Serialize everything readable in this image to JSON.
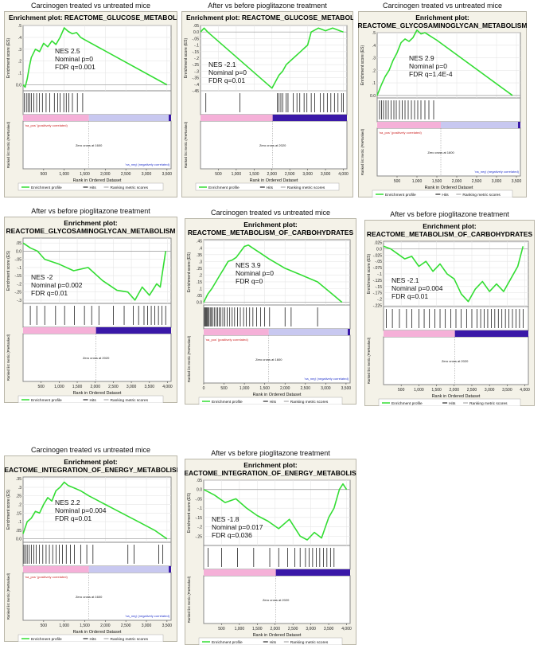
{
  "colors": {
    "curve": "#33dd33",
    "frame_bg": "#f4f2e8",
    "plot_bg": "#ffffff",
    "pos_bar": "#f5b0d8",
    "neg_bar_light": "#c8c8f0",
    "neg_bar_dark": "#3a18a8",
    "pos_label": "#cc2222",
    "neg_label": "#2233cc"
  },
  "labels": {
    "ylabel_es": "Enrichment score (ES)",
    "ylabel_rank": "Ranked list metric (PreRanked)",
    "xlabel": "Rank in Ordered Dataset",
    "pos_label": "'na_pos' (positively correlated)",
    "neg_label": "'na_neg' (negatively correlated)",
    "legend_profile": "Enrichment profile",
    "legend_hits": "Hits",
    "legend_metric": "Ranking metric scores"
  },
  "chart_data": [
    {
      "type": "line",
      "caption": "Carcinogen treated vs untreated mice",
      "title": [
        "Enrichment plot: REACTOME_GLUCOSE_METABOLISM"
      ],
      "nes": "NES 2.5",
      "pval": "Nominal p=0",
      "fdr": "FDR q=0.001",
      "xmax": 3600,
      "xticks": [
        500,
        1000,
        1500,
        2000,
        2500,
        3000,
        3500
      ],
      "xticklabels": [
        "500",
        "1,000",
        "1,500",
        "2,000",
        "2,500",
        "3,000",
        "3,500"
      ],
      "ylim": [
        -0.05,
        0.5
      ],
      "yticks": [
        0.0,
        0.1,
        0.2,
        0.3,
        0.4,
        0.5
      ],
      "x": [
        0,
        50,
        100,
        150,
        200,
        300,
        400,
        500,
        600,
        700,
        800,
        900,
        1000,
        1100,
        1200,
        1300,
        1400,
        1500,
        3500
      ],
      "y": [
        0,
        -0.02,
        0.05,
        0.15,
        0.23,
        0.3,
        0.28,
        0.35,
        0.32,
        0.37,
        0.34,
        0.4,
        0.48,
        0.45,
        0.43,
        0.44,
        0.4,
        0.38,
        0.0
      ],
      "hits": [
        30,
        80,
        120,
        160,
        200,
        260,
        330,
        400,
        470,
        560,
        650,
        760,
        840,
        900,
        990,
        1050,
        1110,
        1200,
        1320,
        1450
      ],
      "zero_cross": "Zero cross at 1600",
      "zero_x": 1600,
      "dark_neg": false,
      "show_pos_label": true
    },
    {
      "type": "line",
      "caption": "After vs before pioglitazone treatment",
      "title": [
        "Enrichment plot: REACTOME_GLUCOSE_METABOLISM"
      ],
      "nes": "NES -2.1",
      "pval": "Nominal p=0",
      "fdr": "FDR q=0.01",
      "xmax": 4100,
      "xticks": [
        500,
        1000,
        1500,
        2000,
        2500,
        3000,
        3500,
        4000
      ],
      "xticklabels": [
        "500",
        "1,000",
        "1,500",
        "2,000",
        "2,500",
        "3,000",
        "3,500",
        "4,000"
      ],
      "ylim": [
        -0.45,
        0.05
      ],
      "yticks": [
        0.05,
        0.0,
        -0.05,
        -0.1,
        -0.15,
        -0.2,
        -0.25,
        -0.3,
        -0.35,
        -0.4,
        -0.45
      ],
      "x": [
        0,
        100,
        200,
        2000,
        2200,
        2300,
        2400,
        2600,
        2800,
        3000,
        3100,
        3300,
        3500,
        3700,
        3800,
        3900,
        4000
      ],
      "y": [
        0,
        0.03,
        0.0,
        -0.43,
        -0.33,
        -0.3,
        -0.25,
        -0.2,
        -0.15,
        -0.1,
        0.0,
        0.03,
        0.01,
        0.03,
        0.02,
        0.01,
        0.0
      ],
      "hits": [
        150,
        1100,
        2150,
        2200,
        2250,
        2300,
        2400,
        2450,
        2600,
        2700,
        2780,
        2900,
        2980,
        3100,
        3200,
        3350,
        3450,
        3550,
        3650,
        3750,
        3850,
        3950,
        4000
      ],
      "zero_cross": "Zero cross at 2020",
      "zero_x": 2020,
      "dark_neg": true,
      "show_pos_label": false
    },
    {
      "type": "line",
      "caption": "Carcinogen treated vs untreated mice",
      "title": [
        "Enrichment plot:",
        "REACTOME_GLYCOSAMINOGLYCAN_METABOLISM"
      ],
      "nes": "NES 2.9",
      "pval": "Nominal p=0",
      "fdr": "FDR q=1.4E-4",
      "xmax": 3600,
      "xticks": [
        500,
        1000,
        1500,
        2000,
        2500,
        3000,
        3500
      ],
      "xticklabels": [
        "500",
        "1,000",
        "1,500",
        "2,000",
        "2,500",
        "3,000",
        "3,500"
      ],
      "ylim": [
        -0.02,
        0.5
      ],
      "yticks": [
        0.0,
        0.1,
        0.2,
        0.3,
        0.4,
        0.5
      ],
      "x": [
        0,
        100,
        200,
        300,
        400,
        500,
        600,
        700,
        800,
        900,
        1000,
        1100,
        1200,
        1300,
        1500,
        3400
      ],
      "y": [
        0,
        0.08,
        0.15,
        0.2,
        0.28,
        0.34,
        0.42,
        0.45,
        0.43,
        0.46,
        0.52,
        0.49,
        0.5,
        0.48,
        0.44,
        0.0
      ],
      "hits": [
        60,
        110,
        160,
        220,
        280,
        350,
        420,
        480,
        560,
        630,
        700,
        780,
        860,
        940,
        1020,
        1100,
        1200,
        1300,
        1420
      ],
      "zero_cross": "Zero cross at 1600",
      "zero_x": 1600,
      "dark_neg": false,
      "show_pos_label": true
    },
    {
      "type": "line",
      "caption": "After vs before pioglitazone treatment",
      "title": [
        "Enrichment plot:",
        "REACTOME_GLYCOSAMINOGLYCAN_METABOLISM"
      ],
      "nes": "NES -2",
      "pval": "Nominal p=0.002",
      "fdr": "FDR q=0.01",
      "xmax": 4100,
      "xticks": [
        500,
        1000,
        1500,
        2000,
        2500,
        3000,
        3500,
        4000
      ],
      "xticklabels": [
        "500",
        "1,000",
        "1,500",
        "2,000",
        "2,500",
        "3,000",
        "3,500",
        "4,000"
      ],
      "ylim": [
        -0.32,
        0.08
      ],
      "yticks": [
        0.05,
        0.0,
        -0.05,
        -0.1,
        -0.15,
        -0.2,
        -0.25,
        -0.3
      ],
      "x": [
        0,
        200,
        400,
        600,
        1000,
        1400,
        1800,
        2200,
        2600,
        2900,
        3100,
        3300,
        3500,
        3700,
        3800,
        3950
      ],
      "y": [
        0.05,
        0.02,
        0.0,
        -0.05,
        -0.08,
        -0.12,
        -0.1,
        -0.18,
        -0.24,
        -0.25,
        -0.3,
        -0.22,
        -0.27,
        -0.2,
        -0.22,
        0.0
      ],
      "hits": [
        200,
        380,
        600,
        900,
        1150,
        1420,
        1700,
        1900,
        2100,
        2500,
        2800,
        3050,
        3200,
        3350,
        3450,
        3550,
        3650,
        3750,
        3850,
        3950
      ],
      "zero_cross": "Zero cross at 2020",
      "zero_x": 2020,
      "dark_neg": true,
      "show_pos_label": false
    },
    {
      "type": "line",
      "caption": "Carcinogen treated vs untreated mice",
      "title": [
        "Enrichment plot:",
        "REACTOME_METABOLISM_OF_CARBOHYDRATES"
      ],
      "nes": "NES 3.9",
      "pval": "Nominal p=0",
      "fdr": "FDR q=0",
      "xmax": 3600,
      "xticks": [
        0,
        500,
        1000,
        1500,
        2000,
        2500,
        3000,
        3500
      ],
      "xticklabels": [
        "0",
        "500",
        "1,000",
        "1,500",
        "2,000",
        "2,500",
        "3,000",
        "3,500"
      ],
      "ylim": [
        -0.02,
        0.46
      ],
      "yticks": [
        0.0,
        0.05,
        0.1,
        0.15,
        0.2,
        0.25,
        0.3,
        0.35,
        0.4,
        0.45
      ],
      "x": [
        0,
        100,
        200,
        300,
        400,
        500,
        600,
        700,
        800,
        900,
        1000,
        1100,
        1200,
        1300,
        1400,
        1600,
        2000,
        2400,
        2800,
        3200,
        3400
      ],
      "y": [
        0,
        0.06,
        0.1,
        0.15,
        0.2,
        0.25,
        0.3,
        0.31,
        0.33,
        0.37,
        0.41,
        0.42,
        0.4,
        0.38,
        0.36,
        0.32,
        0.25,
        0.2,
        0.15,
        0.05,
        0.0
      ],
      "hits": [
        20,
        40,
        60,
        80,
        100,
        130,
        160,
        190,
        220,
        260,
        300,
        340,
        380,
        420,
        470,
        520,
        580,
        640,
        700,
        760,
        830,
        900,
        980,
        1050,
        1130,
        1210,
        1300,
        1400,
        1500,
        1620,
        2000,
        2150,
        2800
      ],
      "zero_cross": "Zero cross at 1600",
      "zero_x": 1600,
      "dark_neg": false,
      "show_pos_label": true
    },
    {
      "type": "line",
      "caption": "After vs before pioglitazone treatment",
      "title": [
        "Enrichment plot:",
        "REACTOME_METABOLISM_OF_CARBOHYDRATES"
      ],
      "nes": "NES -2.1",
      "pval": "Nominal p=0.004",
      "fdr": "FDR q=0.01",
      "xmax": 4100,
      "xticks": [
        500,
        1000,
        1500,
        2000,
        2500,
        3000,
        3500,
        4000
      ],
      "xticklabels": [
        "500",
        "1,000",
        "1,500",
        "2,000",
        "2,500",
        "3,000",
        "3,500",
        "4,000"
      ],
      "ylim": [
        -0.23,
        0.03
      ],
      "yticks": [
        0.025,
        0.0,
        -0.025,
        -0.05,
        -0.075,
        -0.1,
        -0.125,
        -0.15,
        -0.175,
        -0.2,
        -0.225
      ],
      "x": [
        0,
        200,
        400,
        600,
        800,
        1000,
        1200,
        1400,
        1600,
        1800,
        2000,
        2200,
        2400,
        2600,
        2800,
        3000,
        3200,
        3400,
        3600,
        3800,
        3950
      ],
      "y": [
        0.01,
        0.0,
        -0.02,
        -0.04,
        -0.03,
        -0.07,
        -0.05,
        -0.09,
        -0.06,
        -0.1,
        -0.12,
        -0.18,
        -0.21,
        -0.16,
        -0.13,
        -0.17,
        -0.14,
        -0.17,
        -0.12,
        -0.07,
        0.01
      ],
      "hits": [
        80,
        250,
        450,
        650,
        800,
        1000,
        1150,
        1300,
        1450,
        1600,
        1750,
        1900,
        2050,
        2200,
        2350,
        2500,
        2650,
        2750,
        2850,
        2950,
        3050,
        3150,
        3250,
        3350,
        3450,
        3550,
        3650,
        3750,
        3850,
        3950
      ],
      "zero_cross": "Zero cross at 2020",
      "zero_x": 2020,
      "dark_neg": true,
      "show_pos_label": false
    },
    {
      "type": "line",
      "caption": "Carcinogen treated vs untreated mice",
      "title": [
        "Enrichment plot:",
        "REACTOME_INTEGRATION_OF_ENERGY_METABOLISM"
      ],
      "nes": "NES 2.2",
      "pval": "Nominal p=0.004",
      "fdr": "FDR q=0.01",
      "xmax": 3600,
      "xticks": [
        500,
        1000,
        1500,
        2000,
        2500,
        3000,
        3500
      ],
      "xticklabels": [
        "500",
        "1,000",
        "1,500",
        "2,000",
        "2,500",
        "3,000",
        "3,500"
      ],
      "ylim": [
        -0.02,
        0.36
      ],
      "yticks": [
        0.0,
        0.05,
        0.1,
        0.15,
        0.2,
        0.25,
        0.3,
        0.35
      ],
      "x": [
        0,
        100,
        200,
        300,
        400,
        500,
        600,
        700,
        800,
        900,
        1000,
        1100,
        1200,
        1400,
        1600,
        2000,
        2400,
        2800,
        3200,
        3500
      ],
      "y": [
        0.03,
        0.1,
        0.12,
        0.16,
        0.15,
        0.2,
        0.24,
        0.22,
        0.28,
        0.3,
        0.33,
        0.31,
        0.3,
        0.28,
        0.25,
        0.2,
        0.15,
        0.1,
        0.05,
        0.0
      ],
      "hits": [
        20,
        60,
        100,
        150,
        200,
        260,
        320,
        400,
        480,
        560,
        640,
        720,
        800,
        880,
        960,
        1050,
        1150,
        1250,
        1400,
        1550,
        1700,
        2550,
        2700,
        3300,
        3400
      ],
      "zero_cross": "Zero cross at 1600",
      "zero_x": 1600,
      "dark_neg": false,
      "show_pos_label": true
    },
    {
      "type": "line",
      "caption": "After vs before pioglitazone treatment",
      "title": [
        "Enrichment plot:",
        "REACTOME_INTEGRATION_OF_ENERGY_METABOLISM"
      ],
      "nes": "NES -1.8",
      "pval": "Nominal p=0.017",
      "fdr": "FDR q=0.036",
      "xmax": 4100,
      "xticks": [
        500,
        1000,
        1500,
        2000,
        2500,
        3000,
        3500,
        4000
      ],
      "xticklabels": [
        "500",
        "1,000",
        "1,500",
        "2,000",
        "2,500",
        "3,000",
        "3,500",
        "4,000"
      ],
      "ylim": [
        -0.3,
        0.05
      ],
      "yticks": [
        0.05,
        0.0,
        -0.05,
        -0.1,
        -0.15,
        -0.2,
        -0.25
      ],
      "x": [
        0,
        300,
        600,
        900,
        1200,
        1500,
        1800,
        2100,
        2400,
        2700,
        2900,
        3100,
        3300,
        3500,
        3650,
        3800,
        3900,
        4000
      ],
      "y": [
        0.0,
        -0.03,
        -0.07,
        -0.05,
        -0.1,
        -0.14,
        -0.17,
        -0.21,
        -0.16,
        -0.25,
        -0.27,
        -0.23,
        -0.26,
        -0.15,
        -0.1,
        0.0,
        0.03,
        0.0
      ],
      "hits": [
        120,
        500,
        950,
        1400,
        1850,
        2100,
        2350,
        2550,
        2700,
        2850,
        2950,
        3050,
        3150,
        3250,
        3350,
        3450,
        3550,
        3650
      ],
      "zero_cross": "Zero cross at 2020",
      "zero_x": 2020,
      "dark_neg": true,
      "show_pos_label": false
    }
  ]
}
